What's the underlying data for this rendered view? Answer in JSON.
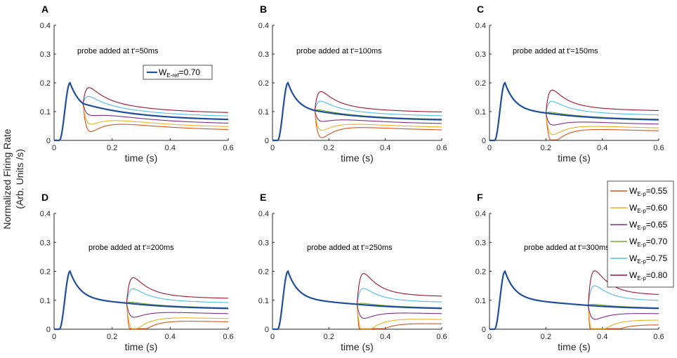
{
  "figure": {
    "ylabel_line1": "Normalized Firing Rate",
    "ylabel_line2": "(Arb. Units /s)"
  },
  "colors": {
    "axis": "#262626",
    "ref": "#1f4e9c",
    "series": [
      "#d95319",
      "#edb120",
      "#7e2f8e",
      "#77ac30",
      "#4dbeee",
      "#a2142f"
    ]
  },
  "legend_ref": {
    "prefix": "W",
    "sub": "E-ref",
    "suffix": "=0.70"
  },
  "legend_series": [
    {
      "prefix": "W",
      "sub": "E-p",
      "suffix": "=0.55"
    },
    {
      "prefix": "W",
      "sub": "E-p",
      "suffix": "=0.60"
    },
    {
      "prefix": "W",
      "sub": "E-p",
      "suffix": "=0.65"
    },
    {
      "prefix": "W",
      "sub": "E-p",
      "suffix": "=0.70"
    },
    {
      "prefix": "W",
      "sub": "E-p",
      "suffix": "=0.75"
    },
    {
      "prefix": "W",
      "sub": "E-p",
      "suffix": "=0.80"
    }
  ],
  "chart_data": [
    {
      "type": "line",
      "panel_label": "A",
      "annotation": "probe added at t'=50ms",
      "probe_time": 0.1,
      "xlabel": "time (s)",
      "xlim": [
        0,
        0.6
      ],
      "ylim": [
        0,
        0.4
      ],
      "xticks": [
        "0",
        "0.2",
        "0.4",
        "0.6"
      ],
      "yticks": [
        "0",
        "0.1",
        "0.2",
        "0.3",
        "0.4"
      ],
      "reference_series": {
        "name": "W_E-ref=0.70",
        "peak": 0.2,
        "end_value": 0.068
      },
      "series": [
        {
          "name": "W_E-p=0.55",
          "end_value": 0.033
        },
        {
          "name": "W_E-p=0.60",
          "end_value": 0.043
        },
        {
          "name": "W_E-p=0.65",
          "end_value": 0.055
        },
        {
          "name": "W_E-p=0.70",
          "end_value": 0.068
        },
        {
          "name": "W_E-p=0.75",
          "end_value": 0.08
        },
        {
          "name": "W_E-p=0.80",
          "end_value": 0.092
        }
      ]
    },
    {
      "type": "line",
      "panel_label": "B",
      "annotation": "probe added at t'=100ms",
      "probe_time": 0.15,
      "xlabel": "time (s)",
      "xlim": [
        0,
        0.6
      ],
      "ylim": [
        0,
        0.4
      ],
      "xticks": [
        "0",
        "0.2",
        "0.4",
        "0.6"
      ],
      "yticks": [
        "0",
        "0.1",
        "0.2",
        "0.3",
        "0.4"
      ],
      "reference_series": {
        "name": "W_E-ref=0.70",
        "peak": 0.2,
        "end_value": 0.068
      },
      "series": [
        {
          "name": "W_E-p=0.55",
          "end_value": 0.033
        },
        {
          "name": "W_E-p=0.60",
          "end_value": 0.043
        },
        {
          "name": "W_E-p=0.65",
          "end_value": 0.055
        },
        {
          "name": "W_E-p=0.70",
          "end_value": 0.07
        },
        {
          "name": "W_E-p=0.75",
          "end_value": 0.082
        },
        {
          "name": "W_E-p=0.80",
          "end_value": 0.095
        }
      ]
    },
    {
      "type": "line",
      "panel_label": "C",
      "annotation": "probe added at t'=150ms",
      "probe_time": 0.2,
      "xlabel": "time (s)",
      "xlim": [
        0,
        0.6
      ],
      "ylim": [
        0,
        0.4
      ],
      "xticks": [
        "0",
        "0.2",
        "0.4",
        "0.6"
      ],
      "yticks": [
        "0",
        "0.1",
        "0.2",
        "0.3",
        "0.4"
      ],
      "reference_series": {
        "name": "W_E-ref=0.70",
        "peak": 0.2,
        "end_value": 0.068
      },
      "series": [
        {
          "name": "W_E-p=0.55",
          "end_value": 0.03
        },
        {
          "name": "W_E-p=0.60",
          "end_value": 0.04
        },
        {
          "name": "W_E-p=0.65",
          "end_value": 0.053
        },
        {
          "name": "W_E-p=0.70",
          "end_value": 0.07
        },
        {
          "name": "W_E-p=0.75",
          "end_value": 0.085
        },
        {
          "name": "W_E-p=0.80",
          "end_value": 0.1
        }
      ]
    },
    {
      "type": "line",
      "panel_label": "D",
      "annotation": "probe added at t'=200ms",
      "probe_time": 0.25,
      "xlabel": "time (s)",
      "xlim": [
        0,
        0.6
      ],
      "ylim": [
        0,
        0.4
      ],
      "xticks": [
        "0",
        "0.2",
        "0.4",
        "0.6"
      ],
      "yticks": [
        "0",
        "0.1",
        "0.2",
        "0.3",
        "0.4"
      ],
      "reference_series": {
        "name": "W_E-ref=0.70",
        "peak": 0.2,
        "end_value": 0.068
      },
      "series": [
        {
          "name": "W_E-p=0.55",
          "end_value": 0.022
        },
        {
          "name": "W_E-p=0.60",
          "end_value": 0.033
        },
        {
          "name": "W_E-p=0.65",
          "end_value": 0.05
        },
        {
          "name": "W_E-p=0.70",
          "end_value": 0.07
        },
        {
          "name": "W_E-p=0.75",
          "end_value": 0.088
        },
        {
          "name": "W_E-p=0.80",
          "end_value": 0.103
        }
      ]
    },
    {
      "type": "line",
      "panel_label": "E",
      "annotation": "probe added at t'=250ms",
      "probe_time": 0.3,
      "xlabel": "time (s)",
      "xlim": [
        0,
        0.6
      ],
      "ylim": [
        0,
        0.4
      ],
      "xticks": [
        "0",
        "0.2",
        "0.4",
        "0.6"
      ],
      "yticks": [
        "0",
        "0.1",
        "0.2",
        "0.3",
        "0.4"
      ],
      "reference_series": {
        "name": "W_E-ref=0.70",
        "peak": 0.2,
        "end_value": 0.068
      },
      "series": [
        {
          "name": "W_E-p=0.55",
          "end_value": 0.015
        },
        {
          "name": "W_E-p=0.60",
          "end_value": 0.03
        },
        {
          "name": "W_E-p=0.65",
          "end_value": 0.05
        },
        {
          "name": "W_E-p=0.70",
          "end_value": 0.07
        },
        {
          "name": "W_E-p=0.75",
          "end_value": 0.09
        },
        {
          "name": "W_E-p=0.80",
          "end_value": 0.11
        }
      ]
    },
    {
      "type": "line",
      "panel_label": "F",
      "annotation": "probe added at t'=300ms",
      "probe_time": 0.35,
      "xlabel": "time (s)",
      "xlim": [
        0,
        0.6
      ],
      "ylim": [
        0,
        0.4
      ],
      "xticks": [
        "0",
        "0.2",
        "0.4",
        "0.6"
      ],
      "yticks": [
        "0",
        "0.1",
        "0.2",
        "0.3",
        "0.4"
      ],
      "reference_series": {
        "name": "W_E-ref=0.70",
        "peak": 0.2,
        "end_value": 0.068
      },
      "series": [
        {
          "name": "W_E-p=0.55",
          "end_value": 0.012
        },
        {
          "name": "W_E-p=0.60",
          "end_value": 0.028
        },
        {
          "name": "W_E-p=0.65",
          "end_value": 0.05
        },
        {
          "name": "W_E-p=0.70",
          "end_value": 0.07
        },
        {
          "name": "W_E-p=0.75",
          "end_value": 0.095
        },
        {
          "name": "W_E-p=0.80",
          "end_value": 0.115
        }
      ]
    }
  ]
}
